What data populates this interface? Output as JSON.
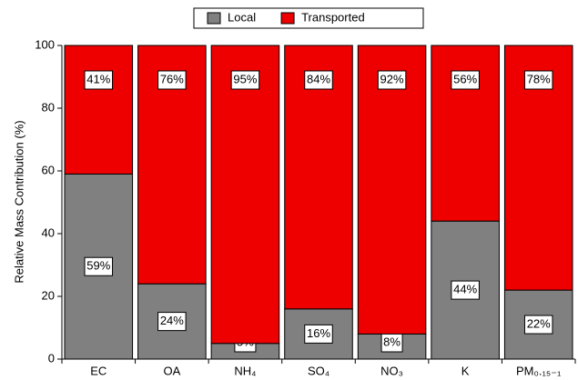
{
  "chart_data": {
    "type": "stacked_bar",
    "y_label": "Relative Mass Contribution (%)",
    "categories": [
      "EC",
      "OA",
      "NH₄",
      "SO₄",
      "NO₃",
      "K",
      "PM₀.₁₅₋₁"
    ],
    "series": [
      {
        "name": "Local",
        "color": "#808080",
        "values": [
          59,
          24,
          5,
          16,
          8,
          44,
          22
        ],
        "value_labels": [
          "59%",
          "24%",
          "5%",
          "16%",
          "8%",
          "44%",
          "22%"
        ]
      },
      {
        "name": "Transported",
        "color": "#ee0000",
        "values": [
          41,
          76,
          95,
          84,
          92,
          56,
          78
        ],
        "value_labels": [
          "41%",
          "76%",
          "95%",
          "84%",
          "92%",
          "56%",
          "78%"
        ]
      }
    ],
    "ylim": [
      0,
      100
    ],
    "yticks": [
      0,
      20,
      40,
      60,
      80,
      100
    ],
    "legend": "top"
  }
}
